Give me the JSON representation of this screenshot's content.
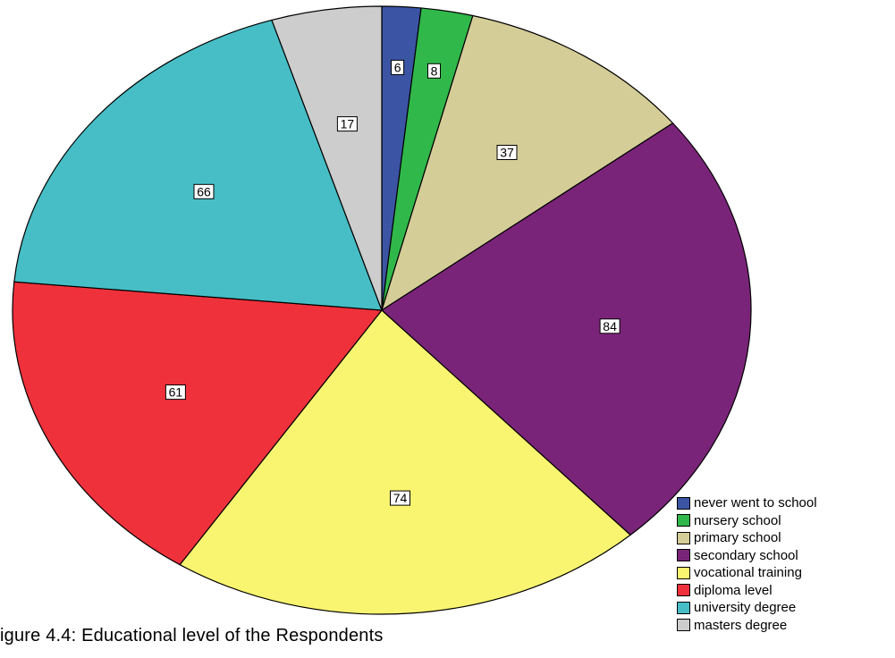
{
  "caption": "igure 4.4: Educational level of the Respondents",
  "chart_data": {
    "type": "pie",
    "title": "",
    "start_angle_deg": 0,
    "direction": "clockwise",
    "legend_position": "bottom-right",
    "slices": [
      {
        "name": "never went to school",
        "value": 6,
        "label": "6",
        "color": "#3B54A3"
      },
      {
        "name": "nursery school",
        "value": 8,
        "label": "8",
        "color": "#31B84A"
      },
      {
        "name": "primary school",
        "value": 37,
        "label": "37",
        "color": "#D5CD98"
      },
      {
        "name": "secondary school",
        "value": 84,
        "label": "84",
        "color": "#7A2479"
      },
      {
        "name": "vocational training",
        "value": 74,
        "label": "74",
        "color": "#FAF571"
      },
      {
        "name": "diploma level",
        "value": 61,
        "label": "61",
        "color": "#EF313C"
      },
      {
        "name": "university degree",
        "value": 66,
        "label": "66",
        "color": "#47BEC5"
      },
      {
        "name": "masters degree",
        "value": 17,
        "label": "17",
        "color": "#CDCDCD"
      }
    ]
  }
}
